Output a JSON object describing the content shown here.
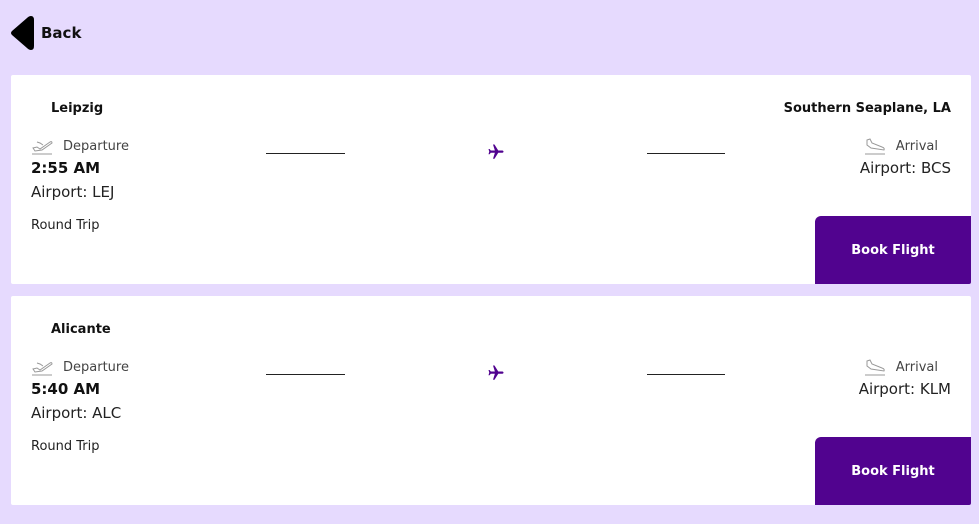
{
  "nav": {
    "back_label": "Back"
  },
  "colors": {
    "accent": "#51038f",
    "background": "#e6dafe",
    "card": "#ffffff"
  },
  "icons": {
    "back": "caret-left-icon",
    "departure": "plane-departure-icon",
    "arrival": "plane-arrival-icon",
    "route": "airplane-icon"
  },
  "flights": [
    {
      "origin_city": "Leipzig",
      "destination_city": "Southern Seaplane, LA",
      "departure_label": "Departure",
      "departure_time": "2:55 AM",
      "departure_airport": "Airport: LEJ",
      "arrival_label": "Arrival",
      "arrival_airport": "Airport: BCS",
      "trip_type": "Round Trip",
      "book_label": "Book Flight"
    },
    {
      "origin_city": "Alicante",
      "destination_city": "",
      "departure_label": "Departure",
      "departure_time": "5:40 AM",
      "departure_airport": "Airport: ALC",
      "arrival_label": "Arrival",
      "arrival_airport": "Airport: KLM",
      "trip_type": "Round Trip",
      "book_label": "Book Flight"
    }
  ]
}
